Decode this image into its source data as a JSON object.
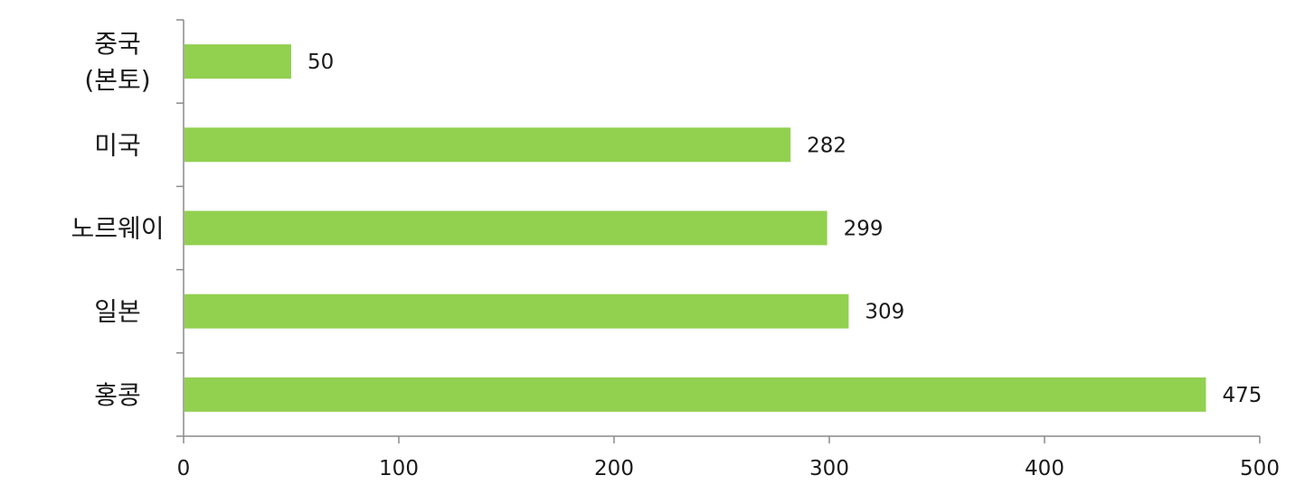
{
  "chart_data": {
    "type": "bar",
    "orientation": "horizontal",
    "categories": [
      [
        "중국",
        "(본토)"
      ],
      [
        "미국"
      ],
      [
        "노르웨이"
      ],
      [
        "일본"
      ],
      [
        "홍콩"
      ]
    ],
    "values": [
      50,
      282,
      299,
      309,
      475
    ],
    "value_labels": [
      "50",
      "282",
      "299",
      "309",
      "475"
    ],
    "x_ticks": [
      "0",
      "100",
      "200",
      "300",
      "400",
      "500"
    ],
    "xlim": [
      0,
      500
    ],
    "title": "",
    "xlabel": "",
    "ylabel": "",
    "grid": false,
    "legend": "none",
    "colors": {
      "bar": "#92d050"
    }
  }
}
